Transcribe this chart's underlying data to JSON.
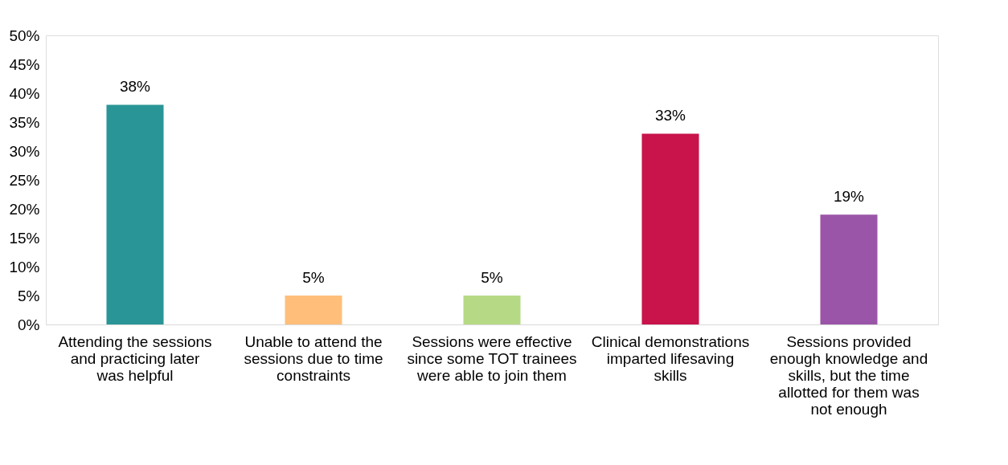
{
  "chart_data": {
    "type": "bar",
    "categories": [
      "Attending the sessions and practicing later was helpful",
      "Unable to attend the sessions due to time constraints",
      "Sessions were effective since some TOT trainees were able to join them",
      "Clinical demonstrations imparted lifesaving skills",
      "Sessions provided enough knowledge and skills, but the time allotted for them was not enough"
    ],
    "values": [
      38,
      5,
      5,
      33,
      19
    ],
    "colors": [
      "#2a9596",
      "#ffbf7a",
      "#b6d985",
      "#c8134b",
      "#9b55a8"
    ],
    "value_labels": [
      "38%",
      "5%",
      "5%",
      "33%",
      "19%"
    ],
    "ylim": [
      0,
      50
    ],
    "yticks": [
      {
        "value": 0,
        "label": "0%"
      },
      {
        "value": 5,
        "label": "5%"
      },
      {
        "value": 10,
        "label": "10%"
      },
      {
        "value": 15,
        "label": "15%"
      },
      {
        "value": 20,
        "label": "20%"
      },
      {
        "value": 25,
        "label": "25%"
      },
      {
        "value": 30,
        "label": "30%"
      },
      {
        "value": 35,
        "label": "35%"
      },
      {
        "value": 40,
        "label": "40%"
      },
      {
        "value": 45,
        "label": "45%"
      },
      {
        "value": 50,
        "label": "50%"
      }
    ],
    "grid": false
  }
}
